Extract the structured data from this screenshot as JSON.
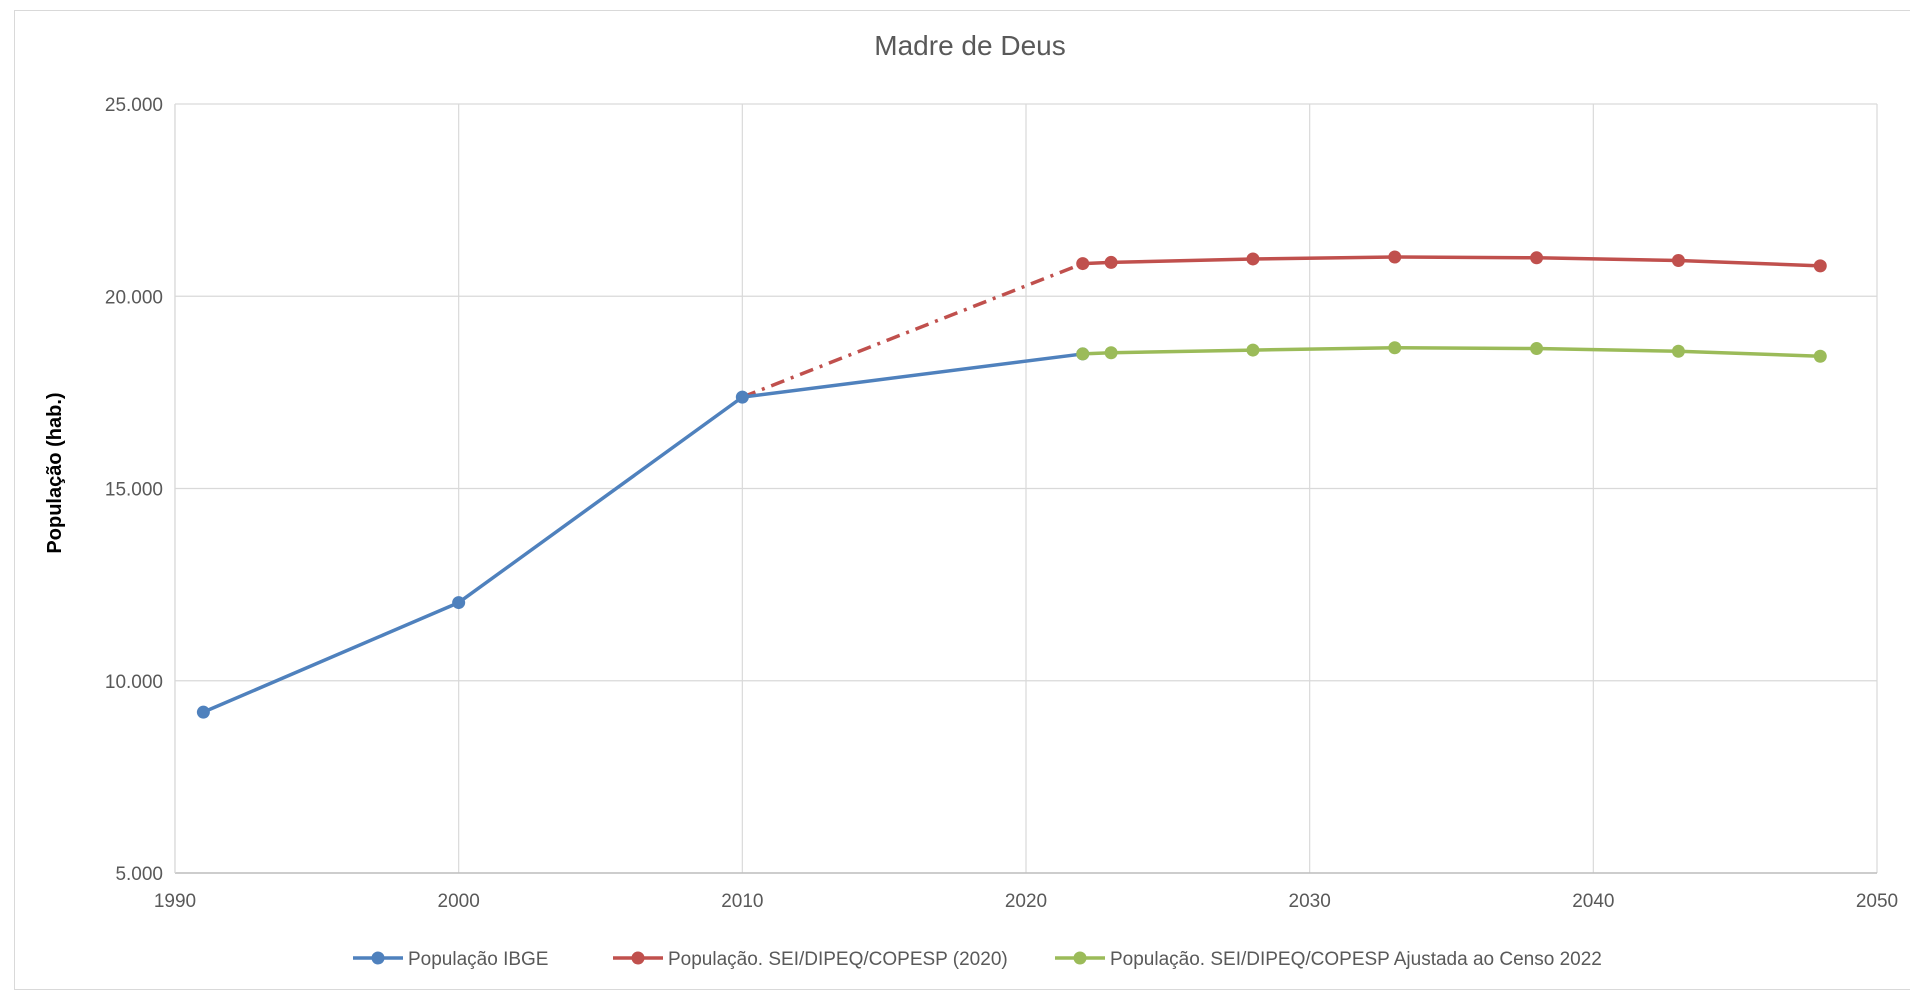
{
  "chart_data": {
    "type": "line",
    "title": "Madre de Deus",
    "xlabel": "",
    "ylabel": "População (hab.)",
    "xlim": [
      1990,
      2050
    ],
    "ylim": [
      5000,
      25000
    ],
    "x_ticks": [
      1990,
      2000,
      2010,
      2020,
      2030,
      2040,
      2050
    ],
    "x_tick_labels": [
      "1990",
      "2000",
      "2010",
      "2020",
      "2030",
      "2040",
      "2050"
    ],
    "y_ticks": [
      5000,
      10000,
      15000,
      20000,
      25000
    ],
    "y_tick_labels": [
      "5.000",
      "10.000",
      "15.000",
      "20.000",
      "25.000"
    ],
    "grid": true,
    "legend_position": "bottom",
    "series": [
      {
        "name": "População IBGE",
        "color": "#4f81bd",
        "line_style": "solid",
        "x": [
          1991,
          2000,
          2010,
          2022
        ],
        "y": [
          9183,
          12033,
          17376,
          18500
        ]
      },
      {
        "name": "População. SEI/DIPEQ/COPESP (2020)",
        "color": "#c0504d",
        "line_style": "solid",
        "x": [
          2022,
          2023,
          2028,
          2033,
          2038,
          2043,
          2048
        ],
        "y": [
          20850,
          20880,
          20970,
          21020,
          21000,
          20930,
          20790
        ]
      },
      {
        "name": "População. SEI/DIPEQ/COPESP Ajustada ao Censo 2022",
        "color": "#9bbb59",
        "line_style": "solid",
        "x": [
          2022,
          2023,
          2028,
          2033,
          2038,
          2043,
          2048
        ],
        "y": [
          18500,
          18530,
          18600,
          18660,
          18640,
          18570,
          18440
        ]
      }
    ],
    "connector": {
      "color": "#c0504d",
      "line_style": "dash-dot",
      "x": [
        2010,
        2022
      ],
      "y": [
        17376,
        20850
      ]
    }
  }
}
